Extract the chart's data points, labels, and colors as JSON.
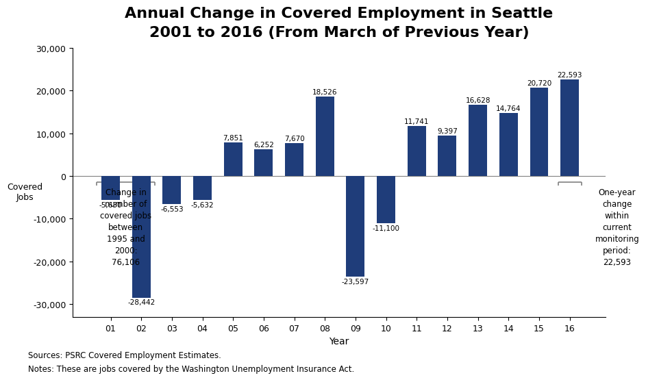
{
  "title_line1": "Annual Change in Covered Employment in Seattle",
  "title_line2": "2001 to 2016 (From March of Previous Year)",
  "years": [
    "01",
    "02",
    "03",
    "04",
    "05",
    "06",
    "07",
    "08",
    "09",
    "10",
    "11",
    "12",
    "13",
    "14",
    "15",
    "16"
  ],
  "values": [
    -5630,
    -28442,
    -6553,
    -5632,
    7851,
    6252,
    7670,
    18526,
    -23597,
    -11100,
    11741,
    9397,
    16628,
    14764,
    20720,
    22593
  ],
  "bar_color": "#1F3D7A",
  "background_color": "#ffffff",
  "ylabel": "Covered\nJobs",
  "xlabel": "Year",
  "ylim": [
    -33000,
    30000
  ],
  "yticks": [
    -30000,
    -20000,
    -10000,
    0,
    10000,
    20000,
    30000
  ],
  "ytick_labels": [
    "-30,000",
    "-20,000",
    "-10,000",
    "0",
    "10,000",
    "20,000",
    "30,000"
  ],
  "source_text": "Sources: PSRC Covered Employment Estimates.",
  "notes_text": "Notes: These are jobs covered by the Washington Unemployment Insurance Act.",
  "annotation_left_text": "Change in\nnumber of\ncovered jobs\nbetween\n1995 and\n2000:\n76,106",
  "annotation_right_text": "One-year\nchange\nwithin\ncurrent\nmonitoring\nperiod:\n22,593",
  "title_fontsize": 16,
  "label_fontsize": 9,
  "tick_fontsize": 9,
  "value_fontsize": 7.5
}
